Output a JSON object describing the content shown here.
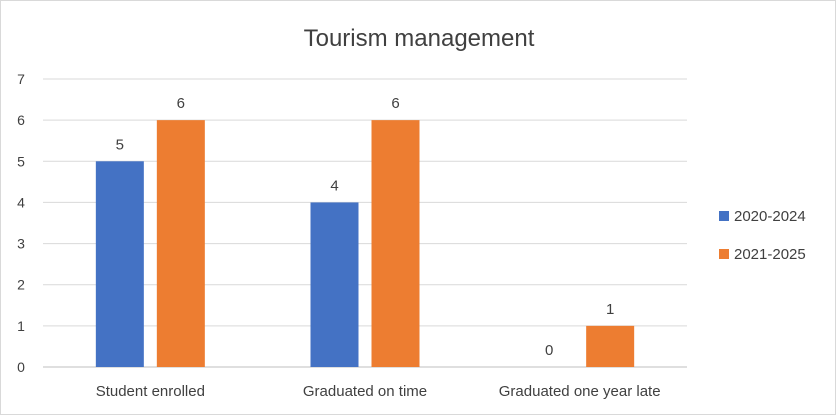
{
  "chart_data": {
    "type": "bar",
    "title": "Tourism management",
    "xlabel": "",
    "ylabel": "",
    "categories": [
      "Student enrolled",
      "Graduated on time",
      "Graduated one year late"
    ],
    "series": [
      {
        "name": "2020-2024",
        "color": "#4472c4",
        "values": [
          5,
          4,
          0
        ]
      },
      {
        "name": "2021-2025",
        "color": "#ed7d31",
        "values": [
          6,
          6,
          1
        ]
      }
    ],
    "ylim": [
      0,
      7
    ],
    "yticks": [
      0,
      1,
      2,
      3,
      4,
      5,
      6,
      7
    ],
    "grid": true,
    "legend_position": "right",
    "data_labels": true
  }
}
